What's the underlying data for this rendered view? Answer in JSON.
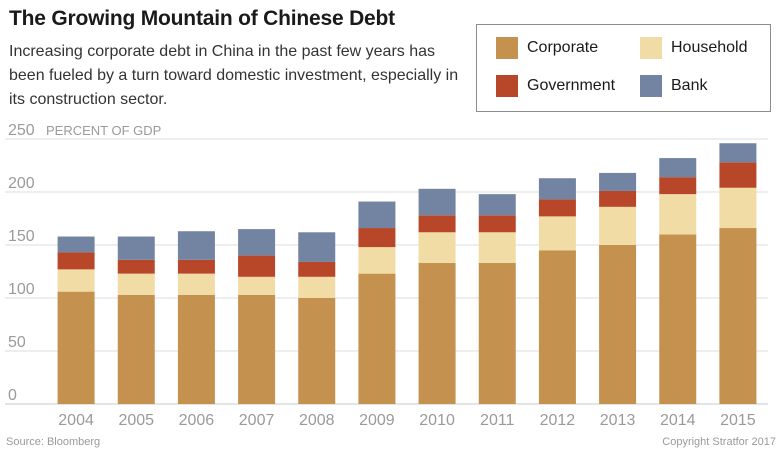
{
  "header": {
    "title": "The Growing Mountain of Chinese Debt",
    "subtitle": "Increasing corporate debt in China in the past few years has been fueled by a turn toward domestic investment, especially in its construction sector."
  },
  "footer": {
    "source": "Source: Bloomberg",
    "copyright": "Copyright Stratfor 2017"
  },
  "chart_data": {
    "type": "bar",
    "stacked": true,
    "title": "The Growing Mountain of Chinese Debt",
    "ylabel": "PERCENT OF GDP",
    "xlabel": "",
    "ylim": [
      0,
      250
    ],
    "yticks": [
      0,
      50,
      100,
      150,
      200,
      250
    ],
    "grid": true,
    "legend_position": "top-right",
    "categories": [
      "2004",
      "2005",
      "2006",
      "2007",
      "2008",
      "2009",
      "2010",
      "2011",
      "2012",
      "2013",
      "2014",
      "2015"
    ],
    "series": [
      {
        "name": "Corporate",
        "color": "#c4914e",
        "values": [
          106,
          103,
          103,
          103,
          100,
          123,
          133,
          133,
          145,
          150,
          160,
          166
        ]
      },
      {
        "name": "Household",
        "color": "#f2dca5",
        "values": [
          21,
          20,
          20,
          17,
          20,
          25,
          29,
          29,
          32,
          36,
          38,
          38
        ]
      },
      {
        "name": "Government",
        "color": "#b8472a",
        "values": [
          16,
          13,
          13,
          20,
          14,
          18,
          16,
          16,
          16,
          15,
          16,
          24
        ]
      },
      {
        "name": "Bank",
        "color": "#7384a3",
        "values": [
          15,
          22,
          27,
          25,
          28,
          25,
          25,
          20,
          20,
          17,
          18,
          18
        ]
      }
    ]
  }
}
